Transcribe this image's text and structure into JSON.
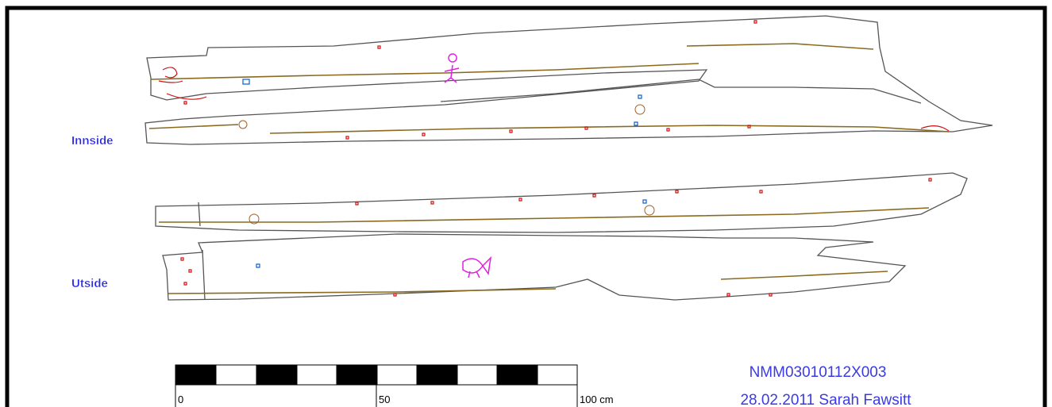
{
  "labels": {
    "inside": "Innside",
    "outside": "Utside"
  },
  "scale_bar": {
    "start": "0",
    "middle": "50",
    "end": "100 cm"
  },
  "caption": {
    "id": "NMM03010112X003",
    "credit": "28.02.2011 Sarah Fawsitt"
  }
}
